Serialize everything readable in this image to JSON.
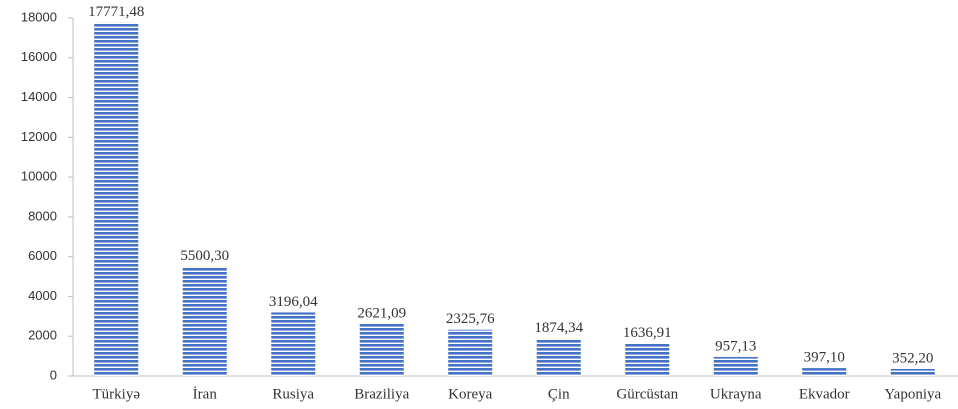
{
  "chart_data": {
    "type": "bar",
    "categories": [
      "Türkiyə",
      "İran",
      "Rusiya",
      "Braziliya",
      "Koreya",
      "Çin",
      "Gürcüstan",
      "Ukrayna",
      "Ekvador",
      "Yaponiya"
    ],
    "values": [
      17771.48,
      5500.3,
      3196.04,
      2621.09,
      2325.76,
      1874.34,
      1636.91,
      957.13,
      397.1,
      352.2
    ],
    "value_labels": [
      "17771,48",
      "5500,30",
      "3196,04",
      "2621,09",
      "2325,76",
      "1874,34",
      "1636,91",
      "957,13",
      "397,10",
      "352,20"
    ],
    "color": "#4472c4",
    "ylim": [
      0,
      18000
    ],
    "yticks": [
      0,
      2000,
      4000,
      6000,
      8000,
      10000,
      12000,
      14000,
      16000,
      18000
    ],
    "grid": false
  }
}
